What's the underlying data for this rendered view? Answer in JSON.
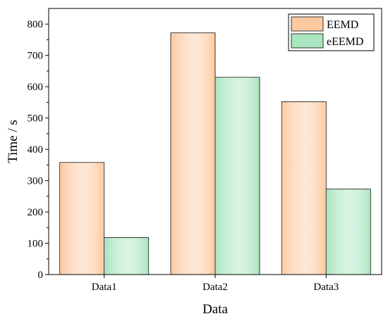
{
  "chart_data": {
    "type": "bar",
    "title": "",
    "xlabel": "Data",
    "ylabel": "Time / s",
    "categories": [
      "Data1",
      "Data2",
      "Data3"
    ],
    "series": [
      {
        "name": "EEMD",
        "values": [
          358,
          772,
          552
        ],
        "color": "#FDC9A0",
        "edge_color": "#F4A86C"
      },
      {
        "name": "eEEMD",
        "values": [
          118,
          630,
          273
        ],
        "color": "#A9E5BE",
        "edge_color": "#5BC486"
      }
    ],
    "ylim": [
      0,
      850
    ],
    "yticks": [
      0,
      100,
      200,
      300,
      400,
      500,
      600,
      700,
      800
    ],
    "grid": false,
    "legend_position": "top-right"
  }
}
